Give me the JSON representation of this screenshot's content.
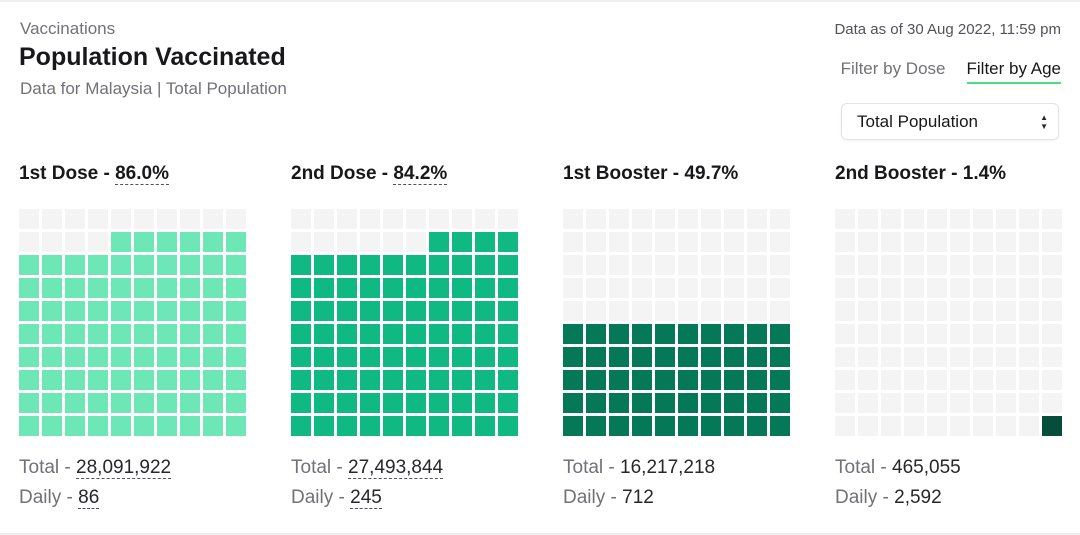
{
  "header": {
    "eyebrow": "Vaccinations",
    "title": "Population Vaccinated",
    "subtitle": "Data for Malaysia | Total Population",
    "as_of": "Data as of 30 Aug 2022, 11:59 pm"
  },
  "tabs": [
    {
      "label": "Filter by Dose",
      "active": false
    },
    {
      "label": "Filter by Age",
      "active": true
    }
  ],
  "filter": {
    "selected": "Total Population"
  },
  "labels": {
    "total": "Total - ",
    "daily": "Daily - "
  },
  "chart_data": [
    {
      "type": "waffle",
      "title": "1st Dose",
      "percent": "86.0%",
      "value": 86.0,
      "total": "28,091,922",
      "daily": "86",
      "color": "#6ee7b7"
    },
    {
      "type": "waffle",
      "title": "2nd Dose",
      "percent": "84.2%",
      "value": 84.2,
      "total": "27,493,844",
      "daily": "245",
      "color": "#10b981"
    },
    {
      "type": "waffle",
      "title": "1st Booster",
      "percent": "49.7%",
      "value": 49.7,
      "total": "16,217,218",
      "daily": "712",
      "color": "#047857"
    },
    {
      "type": "waffle",
      "title": "2nd Booster",
      "percent": "1.4%",
      "value": 1.4,
      "total": "465,055",
      "daily": "2,592",
      "color": "#064e3b"
    }
  ]
}
